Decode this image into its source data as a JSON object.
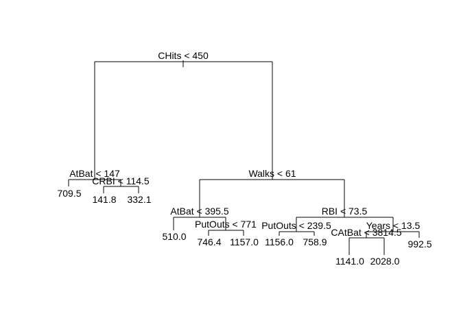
{
  "tree": {
    "splits": {
      "root": "CHits < 450",
      "n_left": "AtBat < 147",
      "n_left_right": "CRBI < 114.5",
      "n_right": "Walks < 61",
      "n_right_left": "AtBat < 395.5",
      "n_right_left_right": "PutOuts < 771",
      "n_right_right": "RBI < 73.5",
      "n_right_right_left": "PutOuts < 239.5",
      "n_right_right_right": "Years < 13.5",
      "n_right_right_right_left": "CAtBat < 3814.5"
    },
    "leaves": {
      "l1": "709.5",
      "l2": "141.8",
      "l3": "332.1",
      "l4": "510.0",
      "l5": "746.4",
      "l6": "1157.0",
      "l7": "1156.0",
      "l8": "758.9",
      "l9": "1141.0",
      "l10": "2028.0",
      "l11": "992.5"
    }
  }
}
